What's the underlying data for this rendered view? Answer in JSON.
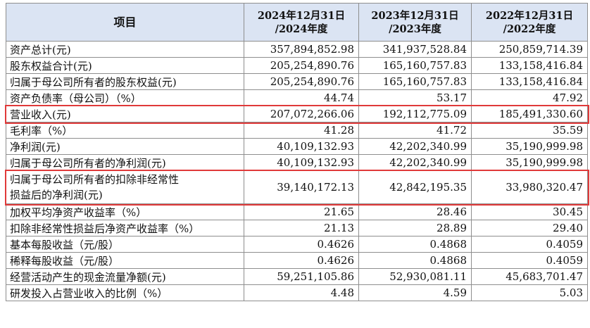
{
  "header": {
    "item": "项目",
    "periods": [
      [
        "2024年12月31日",
        "/2024年度"
      ],
      [
        "2023年12月31日",
        "/2023年度"
      ],
      [
        "2022年12月31日",
        "/2022年度"
      ]
    ]
  },
  "rows": [
    {
      "label": [
        "资产总计(元)"
      ],
      "values": [
        "357,894,852.98",
        "341,937,528.84",
        "250,859,714.39"
      ]
    },
    {
      "label": [
        "股东权益合计(元)"
      ],
      "values": [
        "205,254,890.76",
        "165,160,757.83",
        "133,158,416.84"
      ]
    },
    {
      "label": [
        "归属于母公司所有者的股东权益(元)"
      ],
      "values": [
        "205,254,890.76",
        "165,160,757.83",
        "133,158,416.84"
      ]
    },
    {
      "label": [
        "资产负债率（母公司）（%）"
      ],
      "values": [
        "44.74",
        "53.17",
        "47.92"
      ]
    },
    {
      "label": [
        "营业收入(元)"
      ],
      "values": [
        "207,072,266.06",
        "192,112,775.09",
        "185,491,330.60"
      ]
    },
    {
      "label": [
        "毛利率（%）"
      ],
      "values": [
        "41.28",
        "41.72",
        "35.59"
      ]
    },
    {
      "label": [
        "净利润(元)"
      ],
      "values": [
        "40,109,132.93",
        "42,202,340.99",
        "35,190,999.98"
      ]
    },
    {
      "label": [
        "归属于母公司所有者的净利润(元)"
      ],
      "values": [
        "40,109,132.93",
        "42,202,340.99",
        "35,190,999.98"
      ]
    },
    {
      "label": [
        "归属于母公司所有者的扣除非经常性",
        "损益后的净利润(元)"
      ],
      "values": [
        "39,140,172.13",
        "42,842,195.35",
        "33,980,320.47"
      ]
    },
    {
      "label": [
        "加权平均净资产收益率（%）"
      ],
      "values": [
        "21.65",
        "28.46",
        "30.45"
      ]
    },
    {
      "label": [
        "扣除非经常性损益后净资产收益率（%）"
      ],
      "values": [
        "21.13",
        "28.89",
        "29.40"
      ]
    },
    {
      "label": [
        "基本每股收益（元/股）"
      ],
      "values": [
        "0.4626",
        "0.4868",
        "0.4059"
      ]
    },
    {
      "label": [
        "稀释每股收益（元/股）"
      ],
      "values": [
        "0.4626",
        "0.4868",
        "0.4059"
      ]
    },
    {
      "label": [
        "经营活动产生的现金流量净额(元)"
      ],
      "values": [
        "59,251,105.86",
        "52,930,081.11",
        "45,683,701.47"
      ]
    },
    {
      "label": [
        "研发投入占营业收入的比例（%）"
      ],
      "values": [
        "4.48",
        "4.59",
        "5.03"
      ]
    }
  ],
  "highlight_color": "#e03a3a",
  "header_bg": "#dbe4f3"
}
